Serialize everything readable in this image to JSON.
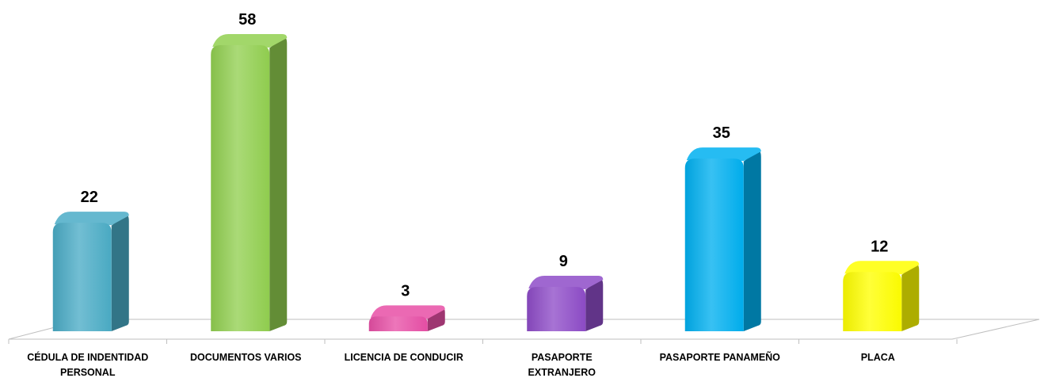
{
  "chart_data": {
    "type": "bar",
    "title": "",
    "xlabel": "",
    "ylabel": "",
    "categories": [
      [
        "CÉDULA DE INDENTIDAD",
        "PERSONAL"
      ],
      [
        "DOCUMENTOS VARIOS"
      ],
      [
        "LICENCIA DE CONDUCIR"
      ],
      [
        "PASAPORTE",
        "EXTRANJERO"
      ],
      [
        "PASAPORTE PANAMEÑO"
      ],
      [
        "PLACA"
      ]
    ],
    "values": [
      22,
      58,
      3,
      9,
      35,
      12
    ],
    "colors": [
      "#4aacc6",
      "#92d050",
      "#e84fa6",
      "#8e4cc8",
      "#00b0f0",
      "#ffff00"
    ],
    "ylim": [
      0,
      58
    ],
    "grid": false,
    "legend": "none"
  }
}
